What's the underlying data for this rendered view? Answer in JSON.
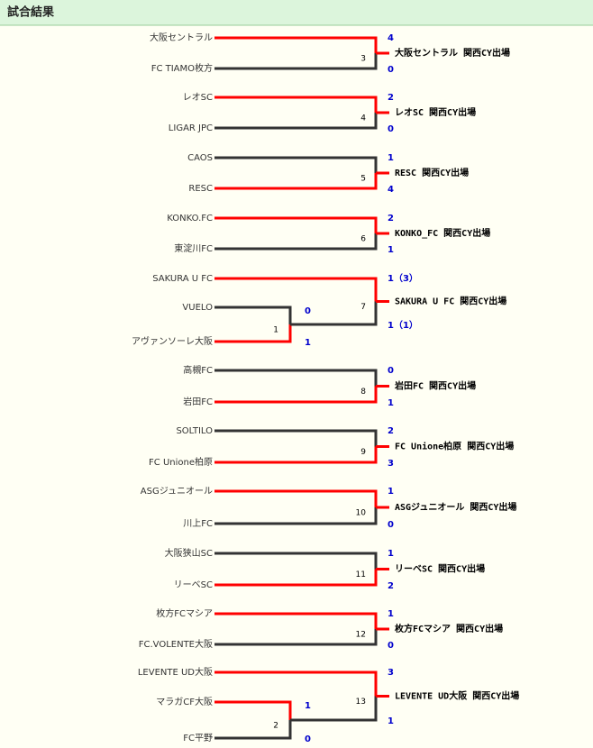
{
  "header": {
    "title": "試合結果"
  },
  "matches": [
    {
      "number": "3",
      "teams": [
        {
          "name": "大阪セントラル",
          "score": "4"
        },
        {
          "name": "FC TIAMO枚方",
          "score": "0"
        }
      ],
      "winner": 0,
      "result": "大阪セントラル 関西CY出場"
    },
    {
      "number": "4",
      "teams": [
        {
          "name": "レオSC",
          "score": "2"
        },
        {
          "name": "LIGAR JPC",
          "score": "0"
        }
      ],
      "winner": 0,
      "result": "レオSC 関西CY出場"
    },
    {
      "number": "5",
      "teams": [
        {
          "name": "CAOS",
          "score": "1"
        },
        {
          "name": "RESC",
          "score": "4"
        }
      ],
      "winner": 1,
      "result": "RESC 関西CY出場"
    },
    {
      "number": "6",
      "teams": [
        {
          "name": "KONKO.FC",
          "score": "2"
        },
        {
          "name": "東淀川FC",
          "score": "1"
        }
      ],
      "winner": 0,
      "result": "KONKO_FC 関西CY出場"
    },
    {
      "number": "7",
      "teams": [
        {
          "name": "SAKURA U FC",
          "score": "1（3）"
        },
        {
          "score": "1（1）",
          "prelim": {
            "number": "1",
            "teams": [
              {
                "name": "VUELO",
                "score": "0"
              },
              {
                "name": "アヴァンソーレ大阪",
                "score": "1"
              }
            ],
            "winner": 1
          }
        }
      ],
      "winner": 0,
      "result": "SAKURA U FC 関西CY出場"
    },
    {
      "number": "8",
      "teams": [
        {
          "name": "高槻FC",
          "score": "0"
        },
        {
          "name": "岩田FC",
          "score": "1"
        }
      ],
      "winner": 1,
      "result": "岩田FC 関西CY出場"
    },
    {
      "number": "9",
      "teams": [
        {
          "name": "SOLTILO",
          "score": "2"
        },
        {
          "name": "FC Unione柏原",
          "score": "3"
        }
      ],
      "winner": 1,
      "result": "FC Unione柏原 関西CY出場"
    },
    {
      "number": "10",
      "teams": [
        {
          "name": "ASGジュニオール",
          "score": "1"
        },
        {
          "name": "川上FC",
          "score": "0"
        }
      ],
      "winner": 0,
      "result": "ASGジュニオール 関西CY出場"
    },
    {
      "number": "11",
      "teams": [
        {
          "name": "大阪狭山SC",
          "score": "1"
        },
        {
          "name": "リーベSC",
          "score": "2"
        }
      ],
      "winner": 1,
      "result": "リーベSC 関西CY出場"
    },
    {
      "number": "12",
      "teams": [
        {
          "name": "枚方FCマシア",
          "score": "1"
        },
        {
          "name": "FC.VOLENTE大阪",
          "score": "0"
        }
      ],
      "winner": 0,
      "result": "枚方FCマシア 関西CY出場"
    },
    {
      "number": "13",
      "teams": [
        {
          "name": "LEVENTE UD大阪",
          "score": "3"
        },
        {
          "score": "1",
          "prelim": {
            "number": "2",
            "teams": [
              {
                "name": "マラガCF大阪",
                "score": "1"
              },
              {
                "name": "FC平野",
                "score": "0"
              }
            ],
            "winner": 0
          }
        }
      ],
      "winner": 0,
      "result": "LEVENTE UD大阪 関西CY出場"
    }
  ]
}
